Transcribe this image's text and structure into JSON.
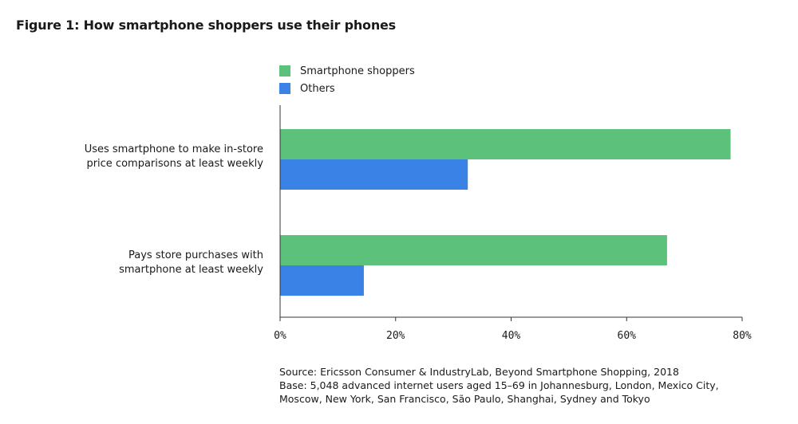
{
  "title": "Figure 1: How smartphone shoppers use their phones",
  "source_lines": [
    "Source: Ericsson Consumer & IndustryLab, Beyond Smartphone Shopping, 2018",
    "Base: 5,048 advanced internet users aged 15–69 in Johannesburg, London, Mexico City,",
    "Moscow, New York, San Francisco, São Paulo, Shanghai, Sydney and Tokyo"
  ],
  "chart_data": {
    "type": "bar",
    "orientation": "horizontal",
    "categories": [
      [
        "Uses smartphone to make in-store",
        "price comparisons at least weekly"
      ],
      [
        "Pays store purchases with",
        "smartphone at least weekly"
      ]
    ],
    "series": [
      {
        "name": "Smartphone shoppers",
        "color": "#5cc17a",
        "values": [
          78,
          67
        ]
      },
      {
        "name": "Others",
        "color": "#3b82e6",
        "values": [
          32.5,
          14.5
        ]
      }
    ],
    "xlim": [
      0,
      80
    ],
    "xticks": [
      "0%",
      "20%",
      "40%",
      "60%",
      "80%"
    ],
    "legend_position": "top-left",
    "grid": false
  }
}
